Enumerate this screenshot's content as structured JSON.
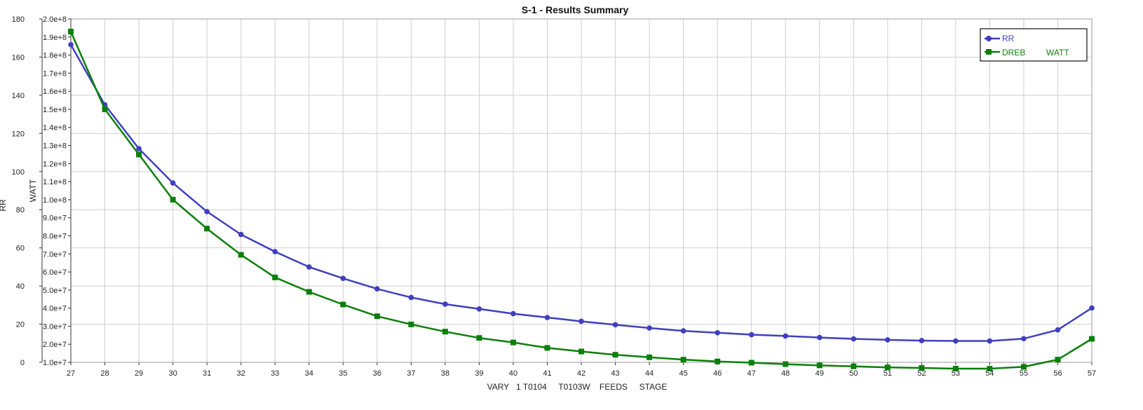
{
  "chart_data": {
    "type": "line",
    "title": "S-1 - Results Summary",
    "xlabel": "VARY   1 T0104     T0103W    FEEDS     STAGE",
    "ylabel_left": "RR",
    "ylabel_right": "WATT",
    "x": [
      27,
      28,
      29,
      30,
      31,
      32,
      33,
      34,
      35,
      36,
      37,
      38,
      39,
      40,
      41,
      42,
      43,
      44,
      45,
      46,
      47,
      48,
      49,
      50,
      51,
      52,
      53,
      54,
      55,
      56,
      57
    ],
    "xlim": [
      27,
      57
    ],
    "ylim_left": [
      0,
      180
    ],
    "ylim_right": [
      10000000,
      200000000
    ],
    "left_ticks": [
      "0",
      "20",
      "40",
      "60",
      "80",
      "100",
      "120",
      "140",
      "160",
      "180"
    ],
    "right_ticks": [
      "1.0e+7",
      "2.0e+7",
      "3.0e+7",
      "4.0e+7",
      "5.0e+7",
      "6.0e+7",
      "7.0e+7",
      "8.0e+7",
      "9.0e+7",
      "1.0e+8",
      "1.1e+8",
      "1.2e+8",
      "1.3e+8",
      "1.4e+8",
      "1.5e+8",
      "1.6e+8",
      "1.7e+8",
      "1.8e+8",
      "1.9e+8",
      "2.0e+8"
    ],
    "grid": true,
    "legend_position": "top-right",
    "legend": [
      {
        "label": "RR",
        "unit": ""
      },
      {
        "label": "DREB",
        "unit": "WATT"
      }
    ],
    "series": [
      {
        "name": "RR",
        "axis": "left",
        "color": "#3f3fbf",
        "marker": "circle",
        "values": [
          166.5,
          135,
          112,
          94,
          79,
          67,
          58,
          50,
          44,
          38.5,
          34,
          30.5,
          28,
          25.5,
          23.5,
          21.5,
          19.7,
          18,
          16.5,
          15.5,
          14.5,
          13.8,
          13,
          12.3,
          11.8,
          11.4,
          11.2,
          11.2,
          12.4,
          17,
          28.5
        ]
      },
      {
        "name": "DREB",
        "axis": "right",
        "color": "#0a7f0a",
        "marker": "square",
        "values": [
          193000000.0,
          150000000.0,
          125000000.0,
          100000000.0,
          84000000.0,
          69500000.0,
          57000000.0,
          49000000.0,
          42000000.0,
          35500000.0,
          31000000.0,
          27000000.0,
          23500000.0,
          21000000.0,
          18000000.0,
          16000000.0,
          14200000.0,
          12800000.0,
          11500000.0,
          10500000.0,
          9800000.0,
          9000000.0,
          8300000.0,
          7800000.0,
          7200000.0,
          6900000.0,
          6500000.0,
          6500000.0,
          7500000.0,
          11500000.0,
          23000000.0
        ]
      }
    ]
  }
}
